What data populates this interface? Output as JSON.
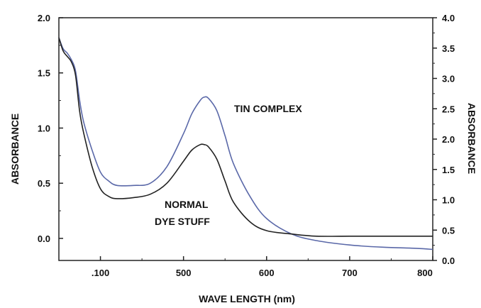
{
  "chart_data": {
    "type": "line",
    "xlabel": "WAVE LENGTH (nm)",
    "ylabel_left": "ABSORBANCE",
    "ylabel_right": "ABSORBANCE",
    "x_ticks": [
      ".100",
      "500",
      "600",
      "700",
      "800"
    ],
    "y_left_ticks": [
      "2.0",
      "1.5",
      "1.0",
      "0.5",
      "0.0"
    ],
    "y_right_ticks": [
      "4.0",
      "3.5",
      "3.0",
      "2.5",
      "2.0",
      "1.5",
      "1.0",
      "0.5",
      "0.0"
    ],
    "xlim": [
      350,
      800
    ],
    "ylim_left": [
      -0.2,
      2.0
    ],
    "ylim_right": [
      0.0,
      4.0
    ],
    "annotations": [
      {
        "id": "tin",
        "text": "TIN COMPLEX"
      },
      {
        "id": "normal1",
        "text": "NORMAL"
      },
      {
        "id": "normal2",
        "text": "DYE STUFF"
      }
    ],
    "series": [
      {
        "name": "TIN COMPLEX",
        "color": "#5a68a8",
        "x": [
          350,
          355,
          360,
          365,
          370,
          375,
          380,
          390,
          400,
          410,
          420,
          440,
          460,
          480,
          500,
          510,
          520,
          525,
          530,
          540,
          550,
          560,
          580,
          600,
          630,
          660,
          700,
          740,
          780,
          800
        ],
        "y": [
          1.82,
          1.72,
          1.68,
          1.62,
          1.52,
          1.25,
          1.05,
          0.8,
          0.6,
          0.52,
          0.48,
          0.48,
          0.5,
          0.65,
          0.95,
          1.13,
          1.25,
          1.28,
          1.27,
          1.16,
          0.93,
          0.68,
          0.38,
          0.18,
          0.04,
          -0.02,
          -0.06,
          -0.08,
          -0.09,
          -0.1
        ]
      },
      {
        "name": "NORMAL DYE STUFF",
        "color": "#222222",
        "x": [
          350,
          355,
          360,
          365,
          370,
          375,
          380,
          390,
          400,
          410,
          420,
          440,
          460,
          480,
          500,
          510,
          520,
          525,
          530,
          540,
          550,
          560,
          580,
          600,
          630,
          660,
          700,
          740,
          780,
          800
        ],
        "y": [
          1.82,
          1.7,
          1.65,
          1.6,
          1.48,
          1.15,
          0.95,
          0.65,
          0.45,
          0.38,
          0.36,
          0.37,
          0.4,
          0.5,
          0.7,
          0.8,
          0.85,
          0.85,
          0.83,
          0.72,
          0.52,
          0.33,
          0.15,
          0.07,
          0.04,
          0.02,
          0.02,
          0.02,
          0.02,
          0.02
        ]
      }
    ]
  }
}
